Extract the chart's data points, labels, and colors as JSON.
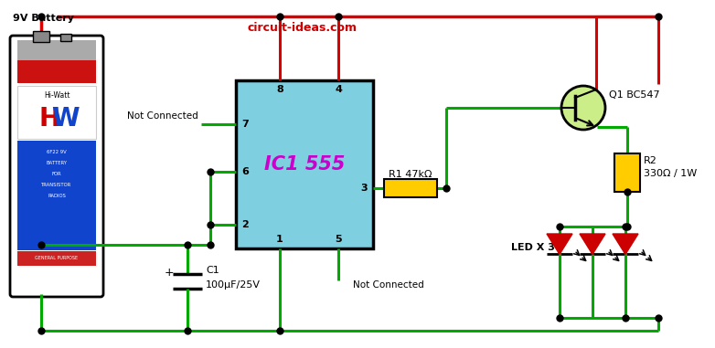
{
  "watermark": "circuit-ideas.com",
  "watermark_color": "#cc0000",
  "bg_color": "#ffffff",
  "wire_red": "#dd0000",
  "wire_green": "#00aa00",
  "black": "#000000",
  "ic_fill": "#7ecfe0",
  "ic_text": "IC1 555",
  "ic_text_color": "#cc00cc",
  "resistor_fill": "#ffcc00",
  "led_fill": "#cc0000",
  "transistor_fill": "#ccee88",
  "battery_label": "9V Battery",
  "nc_label": "Not Connected",
  "r1_label": "R1 47kΩ",
  "r2_label": "R2",
  "r2_label2": "330Ω / 1W",
  "c1_label": "C1",
  "c1_label2": "100μF/25V",
  "q1_label": "Q1 BC547",
  "led_label": "LED X 3",
  "figw": 7.82,
  "figh": 3.81,
  "dpi": 100
}
